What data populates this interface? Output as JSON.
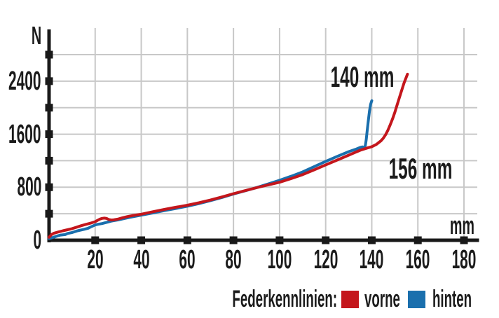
{
  "labels": {
    "y_unit": "N",
    "x_unit": "mm",
    "annotation_rear_end": "140 mm",
    "annotation_front_end": "156 mm"
  },
  "legend": {
    "title": "Federkennlinien:",
    "items": [
      {
        "label": "vorne",
        "color": "#c4161c"
      },
      {
        "label": "hinten",
        "color": "#1a6fad"
      }
    ]
  },
  "colors": {
    "front_curve": "#c4161c",
    "rear_curve": "#1a6fad",
    "grid": "#c8c8c8",
    "axis": "#191919",
    "background": "#ffffff",
    "text": "#1b1b1b"
  },
  "chart_data": {
    "type": "line",
    "title": "",
    "xlabel": "mm",
    "ylabel": "N",
    "xlim": [
      0,
      186
    ],
    "ylim": [
      0,
      3180
    ],
    "grid": true,
    "legend_position": "bottom",
    "x_ticks": [
      20,
      40,
      60,
      80,
      100,
      120,
      140,
      160,
      180
    ],
    "y_gridlines": [
      400,
      800,
      1200,
      1600,
      2000,
      2400,
      2800
    ],
    "y_tick_labels": [
      0,
      800,
      1600,
      2400
    ],
    "series": [
      {
        "name": "hinten",
        "color": "#1a6fad",
        "end_label": "140 mm",
        "points": [
          [
            0,
            25
          ],
          [
            2,
            45
          ],
          [
            4,
            70
          ],
          [
            5,
            78
          ],
          [
            7,
            86
          ],
          [
            8,
            103
          ],
          [
            10,
            116
          ],
          [
            12,
            140
          ],
          [
            13,
            148
          ],
          [
            15,
            163
          ],
          [
            17,
            182
          ],
          [
            18,
            200
          ],
          [
            20,
            230
          ],
          [
            21,
            240
          ],
          [
            23,
            252
          ],
          [
            25,
            270
          ],
          [
            27,
            288
          ],
          [
            30,
            307
          ],
          [
            35,
            345
          ],
          [
            40,
            378
          ],
          [
            45,
            412
          ],
          [
            50,
            447
          ],
          [
            55,
            480
          ],
          [
            60,
            513
          ],
          [
            65,
            553
          ],
          [
            70,
            597
          ],
          [
            75,
            645
          ],
          [
            80,
            697
          ],
          [
            85,
            745
          ],
          [
            90,
            795
          ],
          [
            95,
            848
          ],
          [
            100,
            905
          ],
          [
            105,
            965
          ],
          [
            110,
            1030
          ],
          [
            115,
            1110
          ],
          [
            120,
            1190
          ],
          [
            125,
            1265
          ],
          [
            130,
            1337
          ],
          [
            133,
            1372
          ],
          [
            135,
            1400
          ],
          [
            136,
            1408
          ],
          [
            136.8,
            1398
          ],
          [
            137.2,
            1430
          ],
          [
            137.6,
            1520
          ],
          [
            138,
            1650
          ],
          [
            138.5,
            1800
          ],
          [
            139,
            1950
          ],
          [
            139.5,
            2050
          ],
          [
            140,
            2105
          ]
        ]
      },
      {
        "name": "vorne",
        "color": "#c4161c",
        "end_label": "156 mm",
        "points": [
          [
            0,
            45
          ],
          [
            1,
            85
          ],
          [
            2,
            105
          ],
          [
            4,
            125
          ],
          [
            6,
            143
          ],
          [
            8,
            158
          ],
          [
            10,
            175
          ],
          [
            12,
            198
          ],
          [
            14,
            220
          ],
          [
            16,
            240
          ],
          [
            18,
            258
          ],
          [
            20,
            280
          ],
          [
            21,
            300
          ],
          [
            22,
            318
          ],
          [
            23,
            330
          ],
          [
            24,
            334
          ],
          [
            25,
            329
          ],
          [
            26,
            312
          ],
          [
            27,
            305
          ],
          [
            28,
            308
          ],
          [
            30,
            320
          ],
          [
            32,
            340
          ],
          [
            34,
            357
          ],
          [
            36,
            371
          ],
          [
            38,
            382
          ],
          [
            40,
            393
          ],
          [
            45,
            430
          ],
          [
            50,
            465
          ],
          [
            55,
            498
          ],
          [
            60,
            528
          ],
          [
            65,
            565
          ],
          [
            70,
            607
          ],
          [
            75,
            653
          ],
          [
            80,
            703
          ],
          [
            85,
            748
          ],
          [
            90,
            792
          ],
          [
            95,
            835
          ],
          [
            100,
            875
          ],
          [
            105,
            930
          ],
          [
            110,
            990
          ],
          [
            115,
            1062
          ],
          [
            120,
            1137
          ],
          [
            125,
            1210
          ],
          [
            130,
            1284
          ],
          [
            135,
            1358
          ],
          [
            138,
            1392
          ],
          [
            140,
            1412
          ],
          [
            142,
            1445
          ],
          [
            144,
            1500
          ],
          [
            145,
            1540
          ],
          [
            146,
            1592
          ],
          [
            147,
            1660
          ],
          [
            148,
            1742
          ],
          [
            149,
            1830
          ],
          [
            150,
            1930
          ],
          [
            151,
            2040
          ],
          [
            152,
            2152
          ],
          [
            153,
            2262
          ],
          [
            154,
            2372
          ],
          [
            155,
            2462
          ],
          [
            155.5,
            2505
          ]
        ]
      }
    ]
  }
}
